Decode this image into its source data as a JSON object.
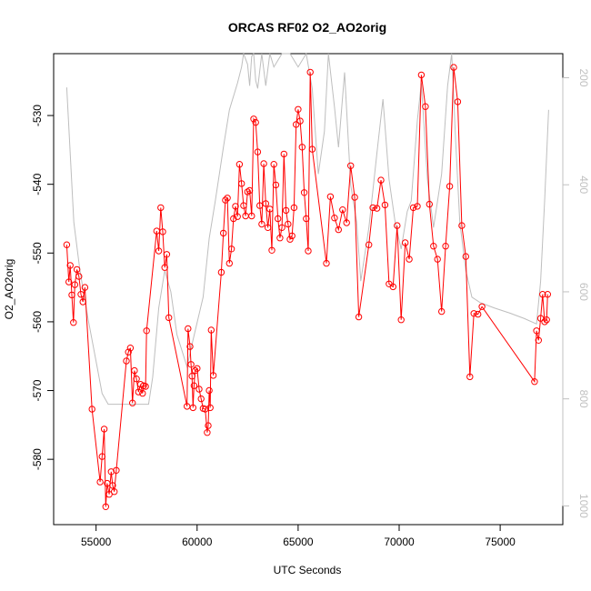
{
  "chart_data": {
    "type": "line",
    "title": "ORCAS RF02 O2_AO2orig",
    "xlabel": "UTC Seconds",
    "ylabel": "O2_AO2orig",
    "xlim": [
      52900,
      78100
    ],
    "ylim": [
      -589.5,
      -521
    ],
    "xticks": [
      55000,
      60000,
      65000,
      70000,
      75000
    ],
    "yticks": [
      -580,
      -570,
      -560,
      -550,
      -540,
      -530
    ],
    "y2lim": [
      1035,
      155
    ],
    "y2ticks": [
      200,
      400,
      600,
      800,
      1000
    ],
    "grid": false,
    "colors": {
      "primary": "#ff0000",
      "secondary": "#bebebe",
      "axis": "#000000",
      "secondary_axis": "#c0c0c0"
    },
    "series": [
      {
        "markers": "open-circle",
        "axis": "left",
        "x": [
          53550,
          53650,
          53720,
          53800,
          53880,
          53950,
          54050,
          54150,
          54250,
          54350,
          54450,
          54800,
          55200,
          55300,
          55400,
          55480,
          55550,
          55650,
          55750,
          55820,
          55900,
          56000,
          56500,
          56600,
          56700,
          56800,
          56900,
          57000,
          57100,
          57200,
          57300,
          57350,
          57450,
          57500,
          58000,
          58100,
          58200,
          58300,
          58400,
          58500,
          58600,
          59500,
          59550,
          59650,
          59700,
          59750,
          59800,
          59850,
          59900,
          60000,
          60100,
          60200,
          60300,
          60400,
          60500,
          60550,
          60600,
          60650,
          60700,
          60800,
          61200,
          61300,
          61400,
          61500,
          61600,
          61700,
          61800,
          61900,
          62000,
          62100,
          62200,
          62300,
          62400,
          62500,
          62600,
          62700,
          62800,
          62900,
          63000,
          63100,
          63200,
          63300,
          63400,
          63500,
          63600,
          63700,
          63800,
          63900,
          64000,
          64100,
          64200,
          64300,
          64400,
          64500,
          64600,
          64700,
          64800,
          64900,
          65000,
          65100,
          65200,
          65300,
          65400,
          65500,
          65600,
          65700,
          66400,
          66600,
          66800,
          67000,
          67200,
          67400,
          67600,
          67800,
          68000,
          68500,
          68700,
          68900,
          69100,
          69300,
          69500,
          69700,
          69900,
          70100,
          70300,
          70500,
          70700,
          70900,
          71100,
          71300,
          71500,
          71700,
          71900,
          72100,
          72300,
          72500,
          72700,
          72900,
          73100,
          73300,
          73500,
          73700,
          73900,
          74100,
          76700,
          76800,
          76900,
          77000,
          77100,
          77200,
          77300,
          77350
        ],
        "y": [
          -548.8,
          -554.2,
          -551.8,
          -556.1,
          -560.1,
          -554.6,
          -552.4,
          -553.4,
          -556.0,
          -557.1,
          -555.0,
          -572.7,
          -583.3,
          -579.6,
          -575.6,
          -586.9,
          -583.5,
          -585.1,
          -581.8,
          -583.8,
          -584.7,
          -581.6,
          -565.7,
          -564.4,
          -563.8,
          -571.8,
          -567.1,
          -568.3,
          -570.2,
          -569.1,
          -570.4,
          -569.3,
          -569.4,
          -561.3,
          -546.8,
          -549.7,
          -543.4,
          -546.9,
          -552.1,
          -550.2,
          -559.4,
          -572.3,
          -561.0,
          -563.6,
          -566.2,
          -567.9,
          -572.5,
          -569.3,
          -567.1,
          -566.8,
          -569.8,
          -571.2,
          -572.6,
          -572.7,
          -576.1,
          -575.1,
          -570.0,
          -572.5,
          -561.2,
          -567.8,
          -552.8,
          -547.1,
          -542.3,
          -542.0,
          -551.5,
          -549.4,
          -545.0,
          -543.2,
          -544.7,
          -537.1,
          -539.9,
          -543.1,
          -544.6,
          -541.1,
          -540.9,
          -544.6,
          -530.5,
          -531.0,
          -535.3,
          -543.1,
          -545.8,
          -537.0,
          -542.8,
          -546.3,
          -543.6,
          -549.6,
          -537.1,
          -540.1,
          -545.0,
          -547.8,
          -546.3,
          -535.6,
          -543.8,
          -545.8,
          -548.0,
          -547.5,
          -543.4,
          -531.3,
          -529.1,
          -530.8,
          -534.6,
          -541.2,
          -545.0,
          -549.7,
          -523.7,
          -534.9,
          -551.5,
          -541.8,
          -544.9,
          -546.6,
          -543.7,
          -545.6,
          -537.3,
          -541.9,
          -559.3,
          -548.8,
          -543.4,
          -543.5,
          -539.4,
          -543.0,
          -554.5,
          -554.9,
          -546.0,
          -559.7,
          -548.5,
          -550.9,
          -543.4,
          -543.2,
          -524.1,
          -528.7,
          -542.9,
          -549.0,
          -550.9,
          -558.5,
          -549.0,
          -540.3,
          -523.0,
          -528.0,
          -546.0,
          -550.5,
          -568.0,
          -558.8,
          -558.9,
          -557.8,
          -568.7,
          -561.3,
          -562.7,
          -559.5,
          -556.0,
          -560.0,
          -559.7,
          -556.0
        ]
      },
      {
        "markers": "none",
        "axis": "right",
        "x": [
          53550,
          53900,
          54200,
          54600,
          55000,
          55300,
          55600,
          56200,
          57000,
          57600,
          57800,
          58100,
          58400,
          58700,
          59000,
          59500,
          59800,
          60300,
          60600,
          60900,
          61300,
          61600,
          62000,
          62200,
          62300,
          62500,
          62600,
          62700,
          62800,
          62900,
          63000,
          63200,
          63400,
          63600,
          63800,
          64200,
          64600,
          65000,
          65400,
          65700,
          66000,
          66300,
          66500,
          66800,
          67000,
          67300,
          67600,
          67900,
          68100,
          68500,
          68900,
          69200,
          69500,
          69800,
          70100,
          70400,
          70600,
          70900,
          71100,
          71400,
          71700,
          72100,
          72400,
          72600,
          72800,
          73000,
          73300,
          73600,
          74000,
          74700,
          75500,
          76200,
          76800,
          77000,
          77200,
          77400
        ],
        "y": [
          218,
          470,
          560,
          650,
          730,
          790,
          810,
          810,
          810,
          810,
          760,
          630,
          560,
          600,
          680,
          740,
          690,
          610,
          500,
          430,
          330,
          260,
          210,
          180,
          150,
          175,
          215,
          160,
          150,
          205,
          220,
          150,
          215,
          150,
          180,
          150,
          150,
          180,
          150,
          220,
          380,
          300,
          150,
          255,
          330,
          190,
          400,
          470,
          580,
          480,
          340,
          240,
          390,
          470,
          520,
          450,
          430,
          280,
          210,
          390,
          480,
          380,
          215,
          150,
          320,
          470,
          560,
          610,
          620,
          630,
          640,
          650,
          660,
          580,
          430,
          260
        ]
      }
    ]
  }
}
